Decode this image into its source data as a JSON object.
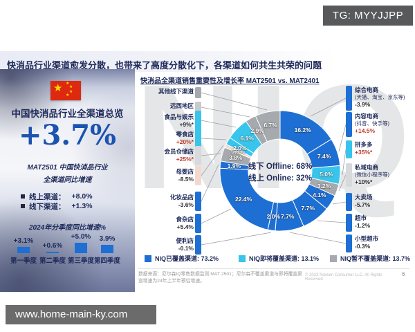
{
  "overlay": {
    "tg_badge": "TG: MYYJJPP",
    "url_bar": "www.home-main-ky.com"
  },
  "slide": {
    "main_title": "快消品行业渠道愈发分散，也带来了高度分散化下，各渠道如何共生共荣的问题",
    "watermark": "NIQ",
    "footnote": "数据来源：尼尔森IQ零售数据监测 MAT 2501；尼尔森不覆盖渠道与即将覆盖渠道增速为24年上半年预估增速。",
    "copyright": "© 2023 Nielsen Consumer LLC. All Rights Reserved",
    "page_number": "6"
  },
  "colors": {
    "covered_blue": "#1e6fd4",
    "upcoming_cyan": "#38c5ec",
    "not_covered_gray": "#a6a9ad",
    "lighter_gray": "#c9cacd",
    "light_gray": "#d8d9db",
    "pink": "#f3d8cf",
    "navy": "#1e2a5a",
    "accent_red": "#c03a2b",
    "headline_blue": "#1b53b0"
  },
  "left_panel": {
    "heading": "中国快消品行业全渠道总览",
    "headline_value": "+3.7%",
    "subtitle_line1": "MAT2501 中国快消品行业",
    "subtitle_line2": "全渠道同比增速",
    "bullets": [
      {
        "label": "线上渠道：",
        "value": "+8.0%"
      },
      {
        "label": "线下渠道：",
        "value": "+1.3%"
      }
    ]
  },
  "chart_data": [
    {
      "type": "pie",
      "title": "快消品全渠道销售重要性及增长率 MAT2501 vs. MAT2401",
      "center_lines": [
        "线下 Offline: 68%",
        "线上 Online: 32%"
      ],
      "legend_position": "bottom",
      "segments": [
        {
          "name": "综合电商",
          "pct": 16.2,
          "color": "covered_blue"
        },
        {
          "name": "内容电商",
          "pct": 7.4,
          "color": "covered_blue"
        },
        {
          "name": "拼多多",
          "pct": 5.0,
          "color": "upcoming_cyan"
        },
        {
          "name": "私域电商",
          "pct": 3.2,
          "color": "not_covered_gray"
        },
        {
          "name": "大卖场",
          "pct": 4.1,
          "color": "covered_blue"
        },
        {
          "name": "超市",
          "pct": 7.7,
          "color": "covered_blue"
        },
        {
          "name": "小型超市",
          "pct": 7.7,
          "color": "covered_blue"
        },
        {
          "name": "便利店",
          "pct": 2.0,
          "color": "covered_blue"
        },
        {
          "name": "食杂店",
          "pct": 22.4,
          "color": "covered_blue"
        },
        {
          "name": "化妆品店",
          "pct": 1.9,
          "color": "covered_blue"
        },
        {
          "name": "会员仓储店",
          "pct": 3.8,
          "color": "not_covered_gray"
        },
        {
          "name": "母婴店",
          "pct": 0.9,
          "color": "pink"
        },
        {
          "name": "零食店",
          "pct": 2.0,
          "color": "upcoming_cyan"
        },
        {
          "name": "食品与娱乐",
          "pct": 6.1,
          "color": "upcoming_cyan"
        },
        {
          "name": "远西地区",
          "pct": 2.9,
          "color": "not_covered_gray"
        },
        {
          "name": "其他线下渠道",
          "pct": 6.7,
          "color": "not_covered_gray"
        }
      ],
      "labels_left": [
        {
          "name": "其他线下渠道",
          "growth": "",
          "swatch": "not_covered_gray",
          "growth_style": "dark"
        },
        {
          "name": "远西地区",
          "growth": "",
          "swatch": "lighter_gray",
          "growth_style": "dark"
        },
        {
          "name": "食品与娱乐",
          "growth": "+9%*",
          "swatch": "upcoming_cyan",
          "growth_style": "dark"
        },
        {
          "name": "零食店",
          "growth": "+20%*",
          "swatch": "upcoming_cyan",
          "growth_style": "red"
        },
        {
          "name": "会员仓储店",
          "growth": "+25%*",
          "swatch": "light_gray",
          "growth_style": "red"
        },
        {
          "name": "母婴店",
          "growth": "-8.5%",
          "swatch": "pink",
          "growth_style": "dark"
        },
        {
          "name": "化妆品店",
          "growth": "-3.6%",
          "swatch": "covered_blue",
          "growth_style": "dark"
        },
        {
          "name": "食杂店",
          "growth": "+5.4%",
          "swatch": "covered_blue",
          "growth_style": "dark"
        },
        {
          "name": "便利店",
          "growth": "-0.1%",
          "swatch": "covered_blue",
          "growth_style": "dark"
        }
      ],
      "labels_right": [
        {
          "name": "综合电商",
          "sub": "(天猫、淘宝、京东等)",
          "growth": "-3.9%",
          "swatch": "covered_blue",
          "growth_style": "dark"
        },
        {
          "name": "内容电商",
          "sub": "(抖音、快手等)",
          "growth": "+14.5%",
          "swatch": "covered_blue",
          "growth_style": "red"
        },
        {
          "name": "拼多多",
          "sub": "",
          "growth": "+35%*",
          "swatch": "upcoming_cyan",
          "growth_style": "red"
        },
        {
          "name": "私域电商",
          "sub": "(微信小程序等)",
          "growth": "+10%*",
          "swatch": "light_gray",
          "growth_style": "dark"
        },
        {
          "name": "大卖场",
          "sub": "",
          "growth": "-5.7%",
          "swatch": "covered_blue",
          "growth_style": "dark"
        },
        {
          "name": "超市",
          "sub": "",
          "growth": "-1.2%",
          "swatch": "covered_blue",
          "growth_style": "dark"
        },
        {
          "name": "小型超市",
          "sub": "",
          "growth": "-0.3%",
          "swatch": "covered_blue",
          "growth_style": "dark"
        }
      ],
      "legend": [
        {
          "label": "NIQ已覆盖渠道:",
          "value": "73.2%",
          "swatch": "covered_blue"
        },
        {
          "label": "NIQ即将覆盖渠道:",
          "value": "13.1%",
          "swatch": "upcoming_cyan"
        },
        {
          "label": "NIQ暂不覆盖渠道:",
          "value": "13.7%",
          "swatch": "not_covered_gray"
        }
      ]
    },
    {
      "type": "bar",
      "title": "2024年分季度同比增速%",
      "categories": [
        "第一季度",
        "第二季度",
        "第三季度",
        "第四季度"
      ],
      "values": [
        3.1,
        0.6,
        5.0,
        3.9
      ],
      "value_labels": [
        "+3.1%",
        "+0.6%",
        "+5.0%",
        "3.9%"
      ],
      "ylim": [
        0,
        6
      ],
      "legend_position": "none"
    }
  ]
}
